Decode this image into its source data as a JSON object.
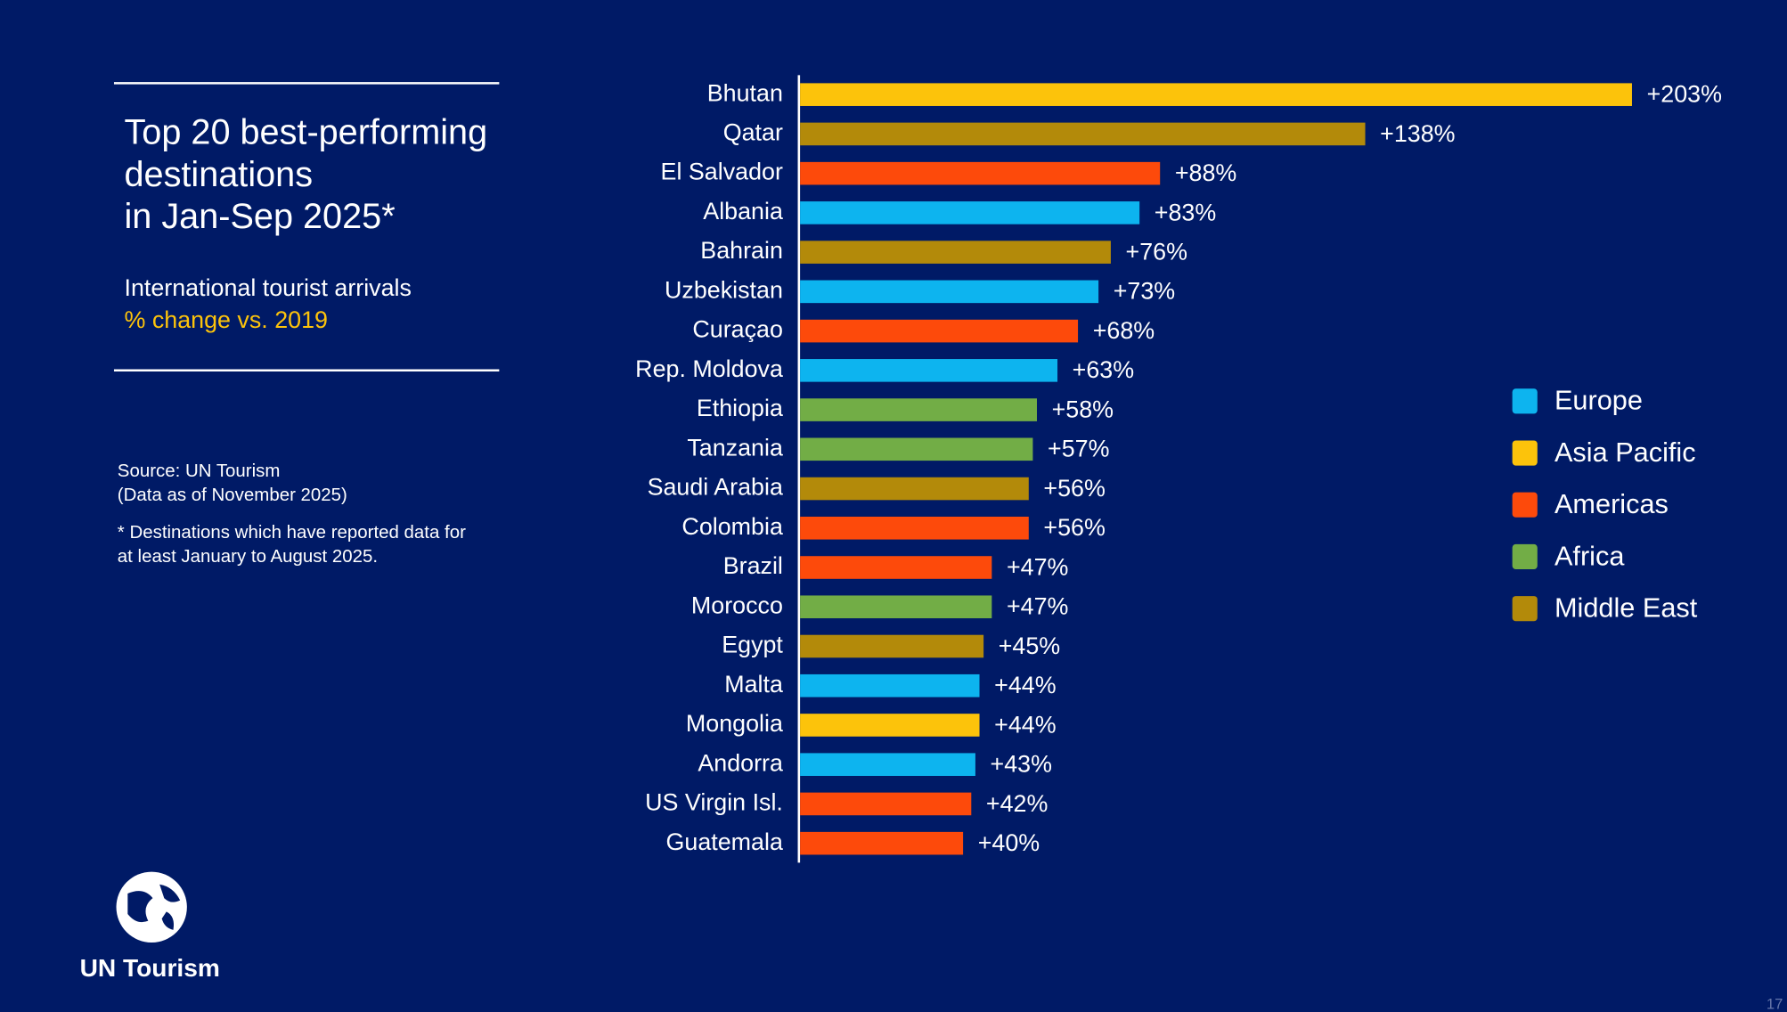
{
  "chart_data": {
    "type": "bar",
    "orientation": "horizontal",
    "title": [
      "Top 20 best-performing",
      "destinations",
      "in Jan-Sep 2025*"
    ],
    "subtitle": "International tourist arrivals",
    "subtitle_highlight": "% change vs. 2019",
    "source": [
      "Source: UN Tourism",
      "(Data as of November 2025)"
    ],
    "footnote": [
      "* Destinations which have reported data for",
      "at least January to August 2025."
    ],
    "logo_text": "UN Tourism",
    "page_number": "17",
    "categories": [
      "Bhutan",
      "Qatar",
      "El Salvador",
      "Albania",
      "Bahrain",
      "Uzbekistan",
      "Curaçao",
      "Rep. Moldova",
      "Ethiopia",
      "Tanzania",
      "Saudi Arabia",
      "Colombia",
      "Brazil",
      "Morocco",
      "Egypt",
      "Malta",
      "Mongolia",
      "Andorra",
      "US Virgin Isl.",
      "Guatemala"
    ],
    "series": [
      {
        "name": "Europe",
        "color": "#0db4ef",
        "values": [
          null,
          null,
          null,
          83,
          null,
          73,
          null,
          63,
          null,
          null,
          null,
          null,
          null,
          null,
          null,
          44,
          null,
          43,
          null,
          null
        ],
        "value_labels": [
          null,
          null,
          null,
          "+83%",
          null,
          "+73%",
          null,
          "+63%",
          null,
          null,
          null,
          null,
          null,
          null,
          null,
          "+44%",
          null,
          "+43%",
          null,
          null
        ]
      },
      {
        "name": "Asia Pacific",
        "color": "#fcc30b",
        "values": [
          203,
          null,
          null,
          null,
          null,
          null,
          null,
          null,
          null,
          null,
          null,
          null,
          null,
          null,
          null,
          null,
          44,
          null,
          null,
          null
        ],
        "value_labels": [
          "+203%",
          null,
          null,
          null,
          null,
          null,
          null,
          null,
          null,
          null,
          null,
          null,
          null,
          null,
          null,
          null,
          "+44%",
          null,
          null,
          null
        ]
      },
      {
        "name": "Americas",
        "color": "#fd4a0b",
        "values": [
          null,
          null,
          88,
          null,
          null,
          null,
          68,
          null,
          null,
          null,
          null,
          56,
          47,
          null,
          null,
          null,
          null,
          null,
          42,
          40
        ],
        "value_labels": [
          null,
          null,
          "+88%",
          null,
          null,
          null,
          "+68%",
          null,
          null,
          null,
          null,
          "+56%",
          "+47%",
          null,
          null,
          null,
          null,
          null,
          "+42%",
          "+40%"
        ]
      },
      {
        "name": "Africa",
        "color": "#72ad46",
        "values": [
          null,
          null,
          null,
          null,
          null,
          null,
          null,
          null,
          58,
          57,
          null,
          null,
          null,
          47,
          null,
          null,
          null,
          null,
          null,
          null
        ],
        "value_labels": [
          null,
          null,
          null,
          null,
          null,
          null,
          null,
          null,
          "+58%",
          "+57%",
          null,
          null,
          null,
          "+47%",
          null,
          null,
          null,
          null,
          null,
          null
        ]
      },
      {
        "name": "Middle East",
        "color": "#b38a0a",
        "values": [
          null,
          138,
          null,
          null,
          76,
          null,
          null,
          null,
          null,
          null,
          56,
          null,
          null,
          null,
          45,
          null,
          null,
          null,
          null,
          null
        ],
        "value_labels": [
          null,
          "+138%",
          null,
          null,
          "+76%",
          null,
          null,
          null,
          null,
          null,
          "+56%",
          null,
          null,
          null,
          "+45%",
          null,
          null,
          null,
          null,
          null
        ]
      }
    ],
    "subtitle_highlight_color": "#fcc30b"
  }
}
